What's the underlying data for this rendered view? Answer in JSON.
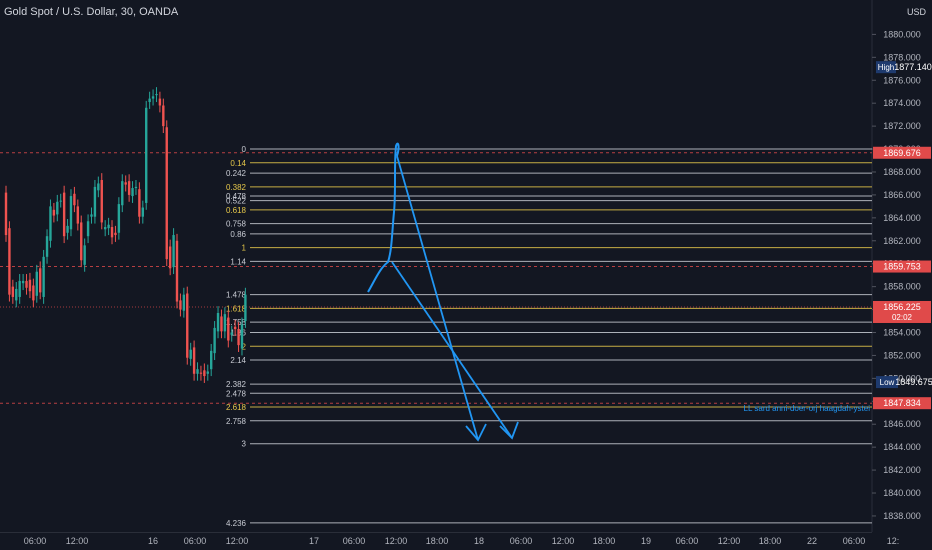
{
  "header": {
    "title": "Gold Spot / U.S. Dollar, 30, OANDA",
    "currency": "USD"
  },
  "colors": {
    "background": "#131722",
    "up": "#26a69a",
    "down": "#ef5350",
    "fib_white": "#c9ccd4",
    "fib_yellow": "#e6c84a",
    "drawing": "#2196f3",
    "red_label": "#e04a4a",
    "high_low_label": "#1e3a6e",
    "dashed_line": "#e04a4a"
  },
  "chart_data": {
    "type": "candlestick",
    "y_range": [
      1836.6,
      1883.0
    ],
    "price_ticks": [
      1838,
      1840,
      1842,
      1844,
      1846,
      1848,
      1850,
      1852,
      1854,
      1856,
      1858,
      1860,
      1862,
      1864,
      1866,
      1868,
      1870,
      1872,
      1874,
      1876,
      1878,
      1880
    ],
    "time_labels": [
      "06:00",
      "12:00",
      "16",
      "06:00",
      "12:00",
      "17",
      "06:00",
      "12:00",
      "18:00",
      "18",
      "06:00",
      "12:00",
      "18:00",
      "19",
      "06:00",
      "12:00",
      "18:00",
      "22",
      "06:00",
      "12:"
    ],
    "candles_open_close": [
      [
        1866.2,
        1862.5
      ],
      [
        1863.1,
        1857.3
      ],
      [
        1858.0,
        1857.1
      ],
      [
        1856.8,
        1857.8
      ],
      [
        1857.1,
        1858.5
      ],
      [
        1858.3,
        1858.5
      ],
      [
        1858.5,
        1857.9
      ],
      [
        1858.6,
        1857.6
      ],
      [
        1858.1,
        1856.8
      ],
      [
        1857.2,
        1859.3
      ],
      [
        1859.6,
        1857.5
      ],
      [
        1857.1,
        1860.6
      ],
      [
        1860.6,
        1862.4
      ],
      [
        1862.0,
        1865.0
      ],
      [
        1864.7,
        1864.2
      ],
      [
        1864.3,
        1865.4
      ],
      [
        1865.5,
        1865.5
      ],
      [
        1866.2,
        1862.4
      ],
      [
        1862.7,
        1863.3
      ],
      [
        1863.0,
        1865.9
      ],
      [
        1866.1,
        1865.1
      ],
      [
        1865.0,
        1863.5
      ],
      [
        1863.6,
        1860.3
      ],
      [
        1859.9,
        1861.6
      ],
      [
        1862.4,
        1863.7
      ],
      [
        1864.1,
        1864.3
      ],
      [
        1864.1,
        1866.7
      ],
      [
        1866.4,
        1867.0
      ],
      [
        1867.3,
        1863.6
      ],
      [
        1863.0,
        1863.2
      ],
      [
        1863.1,
        1863.4
      ],
      [
        1863.2,
        1862.3
      ],
      [
        1862.7,
        1862.5
      ],
      [
        1862.7,
        1865.2
      ],
      [
        1865.1,
        1867.2
      ],
      [
        1867.1,
        1866.9
      ],
      [
        1867.2,
        1866.0
      ],
      [
        1865.9,
        1866.6
      ],
      [
        1866.6,
        1866.7
      ],
      [
        1866.5,
        1864.1
      ],
      [
        1864.1,
        1864.9
      ],
      [
        1865.3,
        1873.6
      ],
      [
        1874.1,
        1874.4
      ],
      [
        1874.4,
        1874.6
      ],
      [
        1874.7,
        1874.8
      ],
      [
        1874.4,
        1873.8
      ],
      [
        1873.8,
        1872.0
      ],
      [
        1871.9,
        1860.4
      ],
      [
        1861.5,
        1859.6
      ],
      [
        1859.7,
        1862.5
      ],
      [
        1862.0,
        1856.7
      ],
      [
        1856.8,
        1856.0
      ],
      [
        1855.9,
        1857.3
      ],
      [
        1857.4,
        1851.8
      ],
      [
        1851.7,
        1852.5
      ],
      [
        1852.7,
        1850.4
      ],
      [
        1850.4,
        1850.8
      ],
      [
        1850.5,
        1850.4
      ],
      [
        1850.7,
        1850.2
      ],
      [
        1850.4,
        1850.6
      ],
      [
        1850.8,
        1852.4
      ],
      [
        1852.2,
        1854.4
      ],
      [
        1854.1,
        1855.7
      ],
      [
        1855.4,
        1854.1
      ],
      [
        1854.1,
        1855.6
      ],
      [
        1855.3,
        1853.3
      ],
      [
        1853.8,
        1854.0
      ],
      [
        1854.5,
        1854.3
      ],
      [
        1854.3,
        1852.9
      ],
      [
        1852.6,
        1854.7
      ],
      [
        1855.0,
        1857.3
      ]
    ],
    "fib_levels": [
      {
        "label": "0",
        "value": 1870.0
      },
      {
        "label": "0.14",
        "value": 1868.8
      },
      {
        "label": "0.242",
        "value": 1867.9
      },
      {
        "label": "0.382",
        "value": 1866.7
      },
      {
        "label": "0.478",
        "value": 1865.9
      },
      {
        "label": "0.522",
        "value": 1865.5
      },
      {
        "label": "0.618",
        "value": 1864.7
      },
      {
        "label": "0.758",
        "value": 1863.5
      },
      {
        "label": "0.86",
        "value": 1862.6
      },
      {
        "label": "1",
        "value": 1861.4
      },
      {
        "label": "1.14",
        "value": 1860.2
      },
      {
        "label": "1.478",
        "value": 1857.3
      },
      {
        "label": "1.618",
        "value": 1856.1
      },
      {
        "label": "1.758",
        "value": 1854.9
      },
      {
        "label": "1.86",
        "value": 1854.0
      },
      {
        "label": "2",
        "value": 1852.8
      },
      {
        "label": "2.14",
        "value": 1851.6
      },
      {
        "label": "2.382",
        "value": 1849.5
      },
      {
        "label": "2.478",
        "value": 1848.7
      },
      {
        "label": "2.618",
        "value": 1847.5
      },
      {
        "label": "2.758",
        "value": 1846.3
      },
      {
        "label": "3",
        "value": 1844.3
      },
      {
        "label": "4.236",
        "value": 1837.4
      }
    ],
    "price_labels": [
      {
        "text": "High",
        "value": "1877.140"
      },
      {
        "text": "",
        "value": "1869.676"
      },
      {
        "text": "",
        "value": "1859.753"
      },
      {
        "text": "",
        "value": "1856.225",
        "countdown": "02:02"
      },
      {
        "text": "Low",
        "value": "1849.675"
      },
      {
        "text": "",
        "value": "1847.834"
      }
    ],
    "annotation": "LL sard anni-doer-orj haagdah-ystei"
  }
}
